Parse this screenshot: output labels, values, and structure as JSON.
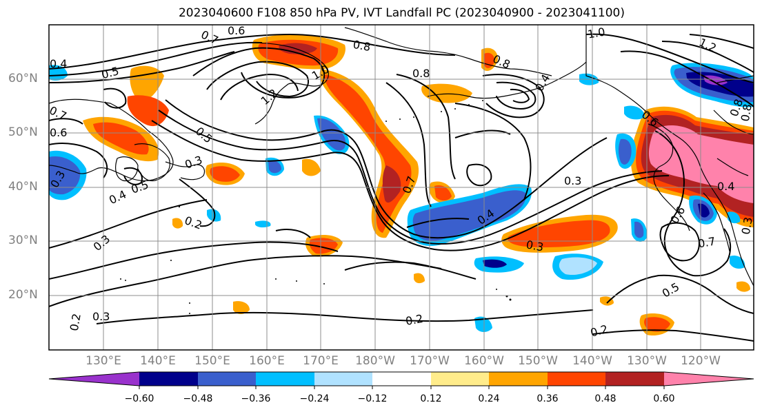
{
  "title": "2023040600 F108 850 hPa PV, IVT Landfall PC (2023040900 - 2023041100)",
  "lat_labels": [
    "60°N",
    "50°N",
    "40°N",
    "30°N",
    "20°N"
  ],
  "lon_labels": [
    "130°E",
    "140°E",
    "150°E",
    "160°E",
    "170°E",
    "180°W",
    "170°W",
    "160°W",
    "150°W",
    "140°W",
    "130°W",
    "120°W"
  ],
  "colorbar": {
    "colors": [
      "#9932cc",
      "#00008b",
      "#3a5fcd",
      "#00bfff",
      "#b0e2ff",
      "#ffffff",
      "#ffec8b",
      "#ffa500",
      "#ff4500",
      "#b22222",
      "#ff82ab"
    ],
    "ticks": [
      "−0.60",
      "−0.48",
      "−0.36",
      "−0.24",
      "−0.12",
      "0.12",
      "0.24",
      "0.36",
      "0.48",
      "0.60"
    ]
  },
  "contour_labels": [
    "0.6",
    "0.7",
    "0.8",
    "0.8",
    "0.8",
    "0.8",
    "1.0",
    "1.0",
    "1.2",
    "1.2",
    "0.4",
    "0.5",
    "0.7",
    "0.6",
    "0.5",
    "0.3",
    "0.3",
    "0.4",
    "0.5",
    "0.2",
    "0.3",
    "0.7",
    "0.4",
    "0.3",
    "0.3",
    "0.2",
    "0.2",
    "0.3",
    "0.4",
    "0.7",
    "0.5",
    "0.3",
    "0.2",
    "0.6",
    "0.8",
    "0.4",
    "0.6"
  ]
}
